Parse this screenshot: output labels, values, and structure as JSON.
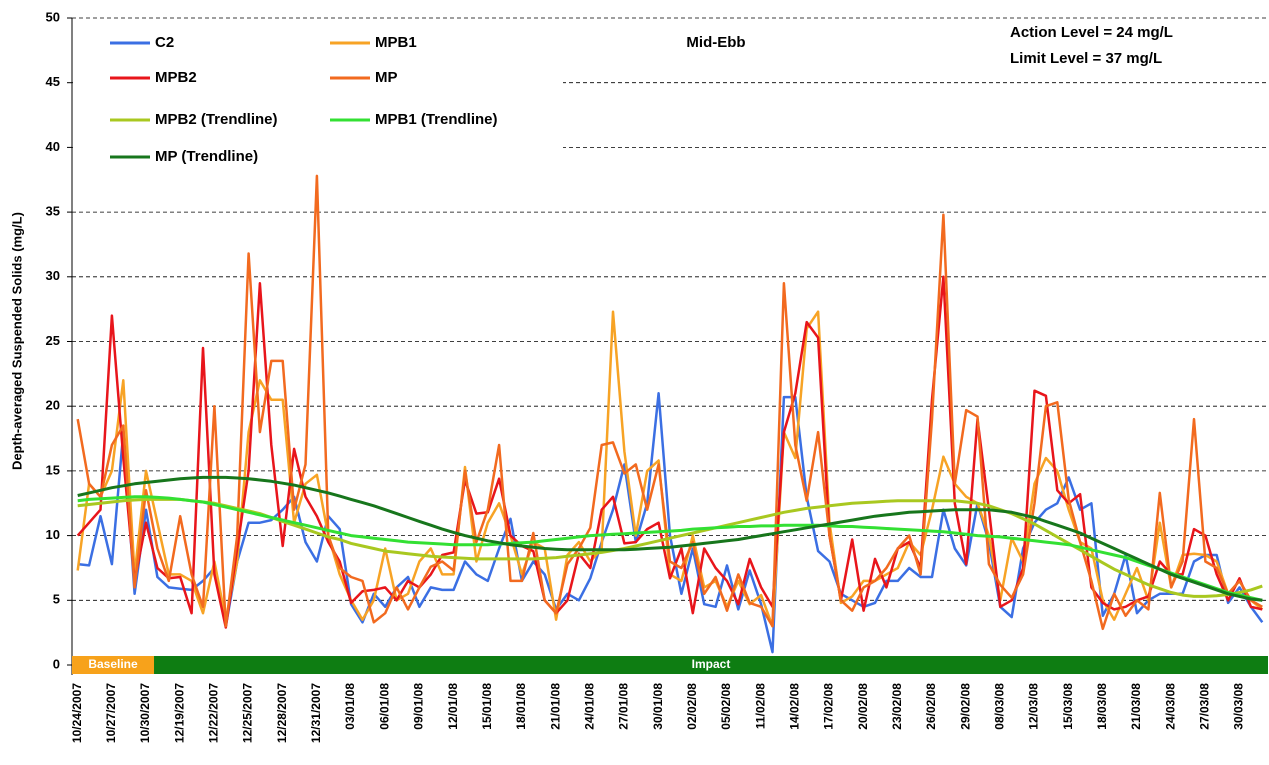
{
  "chart_data": {
    "type": "line",
    "title": "Mid-Ebb",
    "y_label": "Depth-averaged Suspended Solids (mg/L)",
    "annotations": [
      "Action Level = 24 mg/L",
      "Limit Level = 37 mg/L"
    ],
    "ylim": [
      0,
      50
    ],
    "yticks": [
      0,
      5,
      10,
      15,
      20,
      25,
      30,
      35,
      40,
      45,
      50
    ],
    "grid": true,
    "categories": [
      "10/24/2007",
      null,
      null,
      "10/27/2007",
      null,
      null,
      "10/30/2007",
      null,
      null,
      "12/19/2007",
      null,
      null,
      "12/22/2007",
      null,
      null,
      "12/25/2007",
      null,
      null,
      "12/28/2007",
      null,
      null,
      "12/31/2007",
      null,
      null,
      "03/01/08",
      null,
      null,
      "06/01/08",
      null,
      null,
      "09/01/08",
      null,
      null,
      "12/01/08",
      null,
      null,
      "15/01/08",
      null,
      null,
      "18/01/08",
      null,
      null,
      "21/01/08",
      null,
      null,
      "24/01/08",
      null,
      null,
      "27/01/08",
      null,
      null,
      "30/01/08",
      null,
      null,
      "02/02/08",
      null,
      null,
      "05/02/08",
      null,
      null,
      "11/02/08",
      null,
      null,
      "14/02/08",
      null,
      null,
      "17/02/08",
      null,
      null,
      "20/02/08",
      null,
      null,
      "23/02/08",
      null,
      null,
      "26/02/08",
      null,
      null,
      "29/02/08",
      null,
      null,
      "08/03/08",
      null,
      null,
      "12/03/08",
      null,
      null,
      "15/03/08",
      null,
      null,
      "18/03/08",
      null,
      null,
      "21/03/08",
      null,
      null,
      "24/03/08",
      null,
      null,
      "27/03/08",
      null,
      null,
      "30/03/08",
      null,
      null
    ],
    "phases": [
      {
        "label": "Baseline",
        "color": "#f7a21b",
        "start": "10/24/2007"
      },
      {
        "label": "Impact",
        "color": "#0e7d12",
        "start": "12/19/2007"
      }
    ],
    "series": [
      {
        "name": "C2",
        "color": "#3b6fe3",
        "values": [
          7.8,
          7.7,
          11.5,
          7.8,
          18,
          5.5,
          12,
          6.8,
          6,
          5.9,
          5.8,
          6.5,
          7.5,
          3,
          8,
          11,
          11,
          11.2,
          12,
          13,
          9.5,
          8,
          11.5,
          10.5,
          4.7,
          3.3,
          5.5,
          4.5,
          6,
          6.8,
          4.5,
          6,
          5.8,
          5.8,
          8,
          7,
          6.5,
          9,
          11.3,
          6.5,
          8,
          7,
          4.3,
          5.5,
          5,
          6.7,
          9.5,
          12,
          15.5,
          9.5,
          12.5,
          21,
          10,
          5.5,
          9,
          4.7,
          4.5,
          7.7,
          4.3,
          7.3,
          4.7,
          1,
          20.7,
          20.7,
          13,
          8.8,
          8,
          5.5,
          5,
          4.5,
          4.8,
          6.5,
          6.5,
          7.5,
          6.8,
          6.8,
          12,
          9,
          7.7,
          12.5,
          9.5,
          4.5,
          3.7,
          9,
          11,
          12,
          12.5,
          14.5,
          12,
          12.5,
          3.8,
          5.5,
          8.5,
          4,
          5,
          5.5,
          5.5,
          5.5,
          8,
          8.5,
          8.5,
          4.8,
          6,
          4.5,
          3.3
        ]
      },
      {
        "name": "MPB1",
        "color": "#f7a325",
        "values": [
          7.3,
          14,
          13,
          15,
          22,
          7,
          15,
          11,
          7,
          7,
          6.5,
          4,
          8,
          3.5,
          8,
          18,
          22,
          20.5,
          20.5,
          11,
          14,
          14.7,
          10,
          7,
          5,
          3.5,
          5,
          9,
          5,
          5.5,
          8,
          9,
          7,
          7,
          15.3,
          8,
          11,
          12.5,
          10,
          7,
          9.5,
          9,
          3.5,
          8.5,
          9.5,
          8,
          9,
          27.3,
          16.5,
          10,
          15,
          15.8,
          7,
          6.5,
          10,
          6,
          6.5,
          4.5,
          6.5,
          4.7,
          5.4,
          3,
          18,
          16,
          26,
          27.3,
          11,
          4.8,
          5.3,
          6.5,
          6.5,
          7,
          7.5,
          9.5,
          8.5,
          12,
          16.1,
          14,
          13,
          12.5,
          10,
          5,
          9.8,
          8,
          14,
          16,
          15,
          12,
          9.5,
          9,
          5,
          3.5,
          5.5,
          7.5,
          5,
          11,
          6,
          8.5,
          8.6,
          8.5,
          8,
          5.5,
          6.5,
          5,
          4.3
        ]
      },
      {
        "name": "MPB2",
        "color": "#e8151b",
        "values": [
          10,
          11,
          12,
          27,
          16,
          6.5,
          11,
          7.5,
          6.7,
          6.8,
          4,
          24.5,
          7,
          2.9,
          9,
          15,
          29.5,
          17,
          9.2,
          16.7,
          13,
          11.5,
          9.5,
          8,
          4.8,
          5.7,
          5.8,
          6,
          5,
          6.5,
          6,
          7,
          8.5,
          8.7,
          14.3,
          11.7,
          11.8,
          14.4,
          10,
          9.2,
          8.8,
          5,
          4,
          5,
          8.6,
          7.5,
          12,
          13,
          9.4,
          9.5,
          10.5,
          11,
          6.7,
          9,
          4,
          9,
          7.5,
          6.5,
          4.7,
          8.2,
          6,
          4.5,
          18,
          21,
          26.5,
          25.3,
          10,
          5,
          9.7,
          4.2,
          8.2,
          6,
          9,
          9.5,
          7.5,
          20.5,
          30,
          12.5,
          7.8,
          19,
          12,
          4.5,
          5,
          7.5,
          21.2,
          20.8,
          13.5,
          12.5,
          13.2,
          6,
          4.8,
          4.3,
          4.5,
          5,
          5.3,
          8,
          7,
          7,
          10.5,
          10,
          7,
          5,
          6.7,
          4.5,
          4.3
        ]
      },
      {
        "name": "MP",
        "color": "#f26a1f",
        "values": [
          19,
          14,
          13,
          17,
          18.5,
          6,
          13.5,
          9,
          6.5,
          11.5,
          7,
          4.5,
          20,
          3,
          10,
          31.8,
          18,
          23.5,
          23.5,
          12,
          15.5,
          37.8,
          10,
          7.5,
          6.8,
          6.5,
          3.3,
          4,
          6,
          4.3,
          6,
          7.6,
          8,
          7.3,
          15,
          9.5,
          12,
          17,
          6.5,
          6.5,
          10.2,
          5,
          4,
          7.8,
          9,
          10.6,
          17,
          17.2,
          14.8,
          15.5,
          12,
          15.5,
          8,
          7.5,
          9.5,
          5.5,
          6.8,
          4.2,
          7,
          4.8,
          4.5,
          3,
          29.5,
          17,
          12.7,
          18,
          10,
          5,
          4.2,
          6,
          6.5,
          7.5,
          9,
          10,
          7,
          19,
          34.8,
          14,
          19.7,
          19.2,
          7.8,
          6.2,
          5.2,
          7,
          12.5,
          20,
          20.3,
          12.8,
          9.5,
          6.5,
          2.8,
          5.5,
          3.8,
          5,
          4.3,
          13.3,
          6,
          8,
          19,
          8,
          7.5,
          5.5,
          6.5,
          5,
          4.5
        ]
      },
      {
        "name": "MPB2 (Trendline)",
        "color": "#a9c820",
        "values": [
          12.3,
          12.4,
          12.5,
          12.6,
          12.7,
          12.75,
          12.8,
          12.8,
          12.8,
          12.8,
          12.7,
          12.6,
          12.5,
          12.3,
          12.1,
          11.9,
          11.7,
          11.4,
          11.1,
          10.8,
          10.5,
          10.2,
          9.9,
          9.7,
          9.4,
          9.2,
          9.0,
          8.8,
          8.7,
          8.6,
          8.5,
          8.4,
          8.35,
          8.3,
          8.25,
          8.2,
          8.2,
          8.2,
          8.2,
          8.2,
          8.2,
          8.25,
          8.3,
          8.4,
          8.5,
          8.6,
          8.7,
          8.85,
          9.0,
          9.2,
          9.4,
          9.6,
          9.8,
          10.0,
          10.2,
          10.4,
          10.6,
          10.8,
          11.0,
          11.2,
          11.4,
          11.6,
          11.8,
          11.95,
          12.1,
          12.2,
          12.3,
          12.4,
          12.5,
          12.55,
          12.6,
          12.65,
          12.7,
          12.7,
          12.7,
          12.7,
          12.7,
          12.7,
          12.6,
          12.5,
          12.3,
          12.0,
          11.7,
          11.3,
          10.9,
          10.4,
          9.9,
          9.4,
          8.9,
          8.4,
          7.9,
          7.4,
          7.0,
          6.6,
          6.2,
          5.9,
          5.6,
          5.4,
          5.3,
          5.3,
          5.35,
          5.45,
          5.6,
          5.8,
          6.1
        ]
      },
      {
        "name": "MPB1 (Trendline)",
        "color": "#33e033",
        "values": [
          12.7,
          12.8,
          12.85,
          12.9,
          12.95,
          13.0,
          13.0,
          12.95,
          12.9,
          12.8,
          12.7,
          12.6,
          12.4,
          12.2,
          12.0,
          11.8,
          11.6,
          11.4,
          11.2,
          11.0,
          10.8,
          10.6,
          10.4,
          10.2,
          10.0,
          9.9,
          9.8,
          9.7,
          9.6,
          9.5,
          9.45,
          9.4,
          9.35,
          9.3,
          9.3,
          9.3,
          9.3,
          9.35,
          9.4,
          9.45,
          9.5,
          9.6,
          9.7,
          9.8,
          9.9,
          10.0,
          10.05,
          10.1,
          10.15,
          10.2,
          10.25,
          10.3,
          10.35,
          10.4,
          10.5,
          10.55,
          10.6,
          10.65,
          10.7,
          10.7,
          10.75,
          10.75,
          10.8,
          10.8,
          10.8,
          10.8,
          10.75,
          10.7,
          10.7,
          10.65,
          10.6,
          10.55,
          10.5,
          10.45,
          10.4,
          10.35,
          10.3,
          10.2,
          10.1,
          10.0,
          9.95,
          9.9,
          9.8,
          9.7,
          9.6,
          9.5,
          9.4,
          9.3,
          9.1,
          8.9,
          8.7,
          8.5,
          8.3,
          8.0,
          7.7,
          7.4,
          7.1,
          6.8,
          6.5,
          6.2,
          5.9,
          5.6,
          5.4,
          5.2,
          5.0
        ]
      },
      {
        "name": "MP (Trendline)",
        "color": "#17761c",
        "values": [
          13.1,
          13.3,
          13.5,
          13.7,
          13.85,
          14.0,
          14.1,
          14.2,
          14.3,
          14.4,
          14.45,
          14.5,
          14.5,
          14.5,
          14.45,
          14.4,
          14.3,
          14.2,
          14.05,
          13.9,
          13.7,
          13.5,
          13.3,
          13.05,
          12.8,
          12.55,
          12.3,
          12.0,
          11.7,
          11.4,
          11.1,
          10.8,
          10.5,
          10.25,
          10.0,
          9.8,
          9.6,
          9.45,
          9.3,
          9.2,
          9.1,
          9.0,
          8.95,
          8.9,
          8.9,
          8.9,
          8.9,
          8.9,
          8.9,
          8.95,
          9.0,
          9.05,
          9.1,
          9.2,
          9.3,
          9.4,
          9.5,
          9.6,
          9.7,
          9.85,
          10.0,
          10.15,
          10.3,
          10.45,
          10.6,
          10.75,
          10.9,
          11.05,
          11.2,
          11.35,
          11.5,
          11.6,
          11.7,
          11.8,
          11.85,
          11.9,
          11.95,
          12.0,
          12.0,
          12.0,
          12.0,
          11.9,
          11.8,
          11.6,
          11.4,
          11.1,
          10.8,
          10.5,
          10.2,
          9.8,
          9.4,
          9.0,
          8.6,
          8.2,
          7.8,
          7.4,
          7.0,
          6.7,
          6.4,
          6.1,
          5.8,
          5.5,
          5.3,
          5.1,
          5.0
        ]
      }
    ]
  }
}
